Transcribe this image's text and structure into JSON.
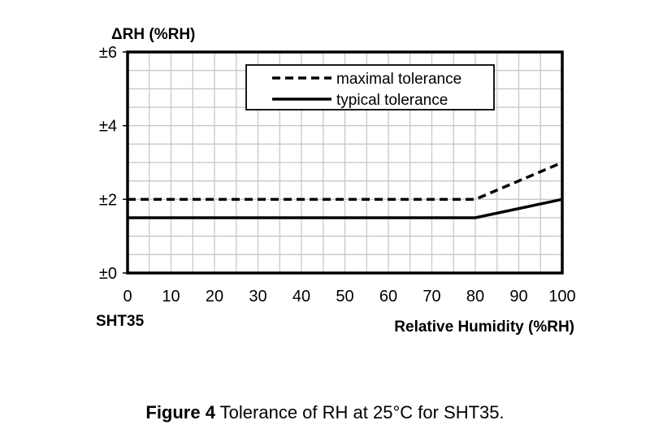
{
  "chart_data": {
    "type": "line",
    "ylabel": "ΔRH (%RH)",
    "xlabel": "Relative Humidity (%RH)",
    "sensor_label": "SHT35",
    "xlim": [
      0,
      100
    ],
    "ylim": [
      0,
      6
    ],
    "x_ticks": [
      "0",
      "10",
      "20",
      "30",
      "40",
      "50",
      "60",
      "70",
      "80",
      "90",
      "100"
    ],
    "y_ticks": [
      "±0",
      "±2",
      "±4",
      "±6"
    ],
    "grid": true,
    "legend_position": "top-right",
    "series": [
      {
        "name": "maximal tolerance",
        "style": "dashed",
        "x": [
          0,
          80,
          100
        ],
        "y": [
          2,
          2,
          3
        ]
      },
      {
        "name": "typical tolerance",
        "style": "solid",
        "x": [
          0,
          80,
          100
        ],
        "y": [
          1.5,
          1.5,
          2
        ]
      }
    ]
  },
  "caption": {
    "figure_label": "Figure 4",
    "text": " Tolerance of RH at 25°C for SHT35."
  }
}
